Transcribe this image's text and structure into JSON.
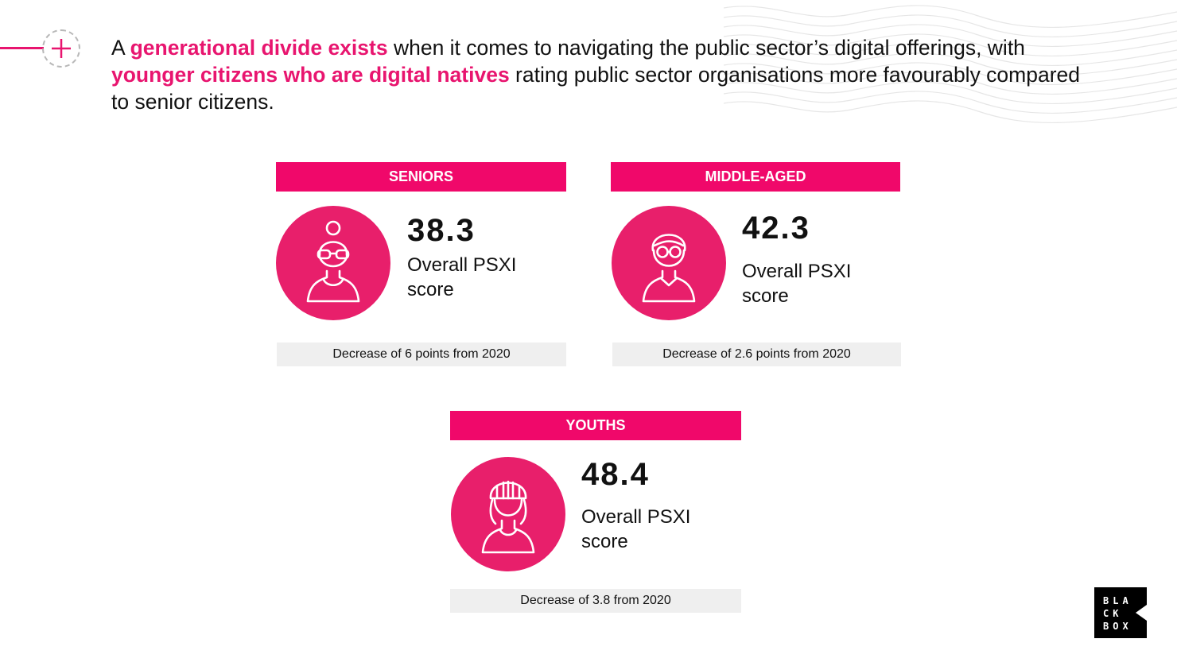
{
  "headline": {
    "part1": "A ",
    "highlight1": "generational divide exists",
    "part2": " when it comes to navigating the public sector’s digital offerings, with ",
    "highlight2": "younger citizens who are digital natives",
    "part3": " rating public sector organisations more favourably compared to senior citizens."
  },
  "colors": {
    "accent": "#f0086a",
    "avatar": "#e81f6b",
    "change_bg": "#efefef"
  },
  "cards": [
    {
      "group": "SENIORS",
      "score": "38.3",
      "label": "Overall PSXI score",
      "change": "Decrease of 6 points from 2020",
      "icon": "senior-woman-icon"
    },
    {
      "group": "MIDDLE-AGED",
      "score": "42.3",
      "label": "Overall PSXI score",
      "change": "Decrease of 2.6 points from 2020",
      "icon": "middle-aged-man-icon"
    },
    {
      "group": "YOUTHS",
      "score": "48.4",
      "label": "Overall PSXI score",
      "change": "Decrease of 3.8 from 2020",
      "icon": "youth-beanie-icon"
    }
  ],
  "logo": {
    "text": "BLACKBOX",
    "line1": "BLA",
    "line2": "CK",
    "line3": "BOX"
  }
}
